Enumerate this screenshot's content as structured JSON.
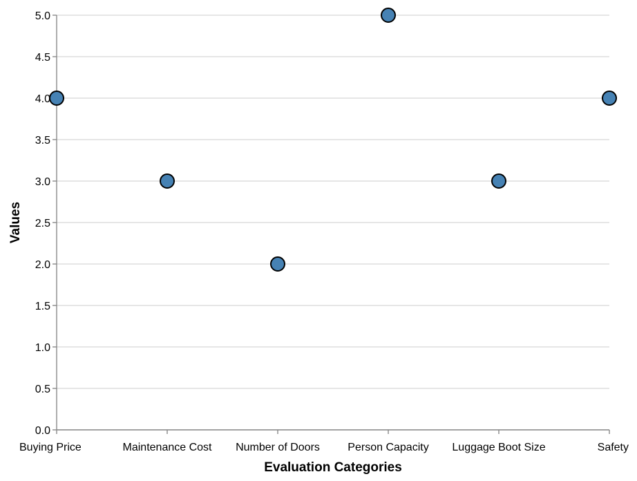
{
  "chart_data": {
    "type": "scatter",
    "categories": [
      "Buying Price",
      "Maintenance Cost",
      "Number of Doors",
      "Person Capacity",
      "Luggage Boot Size",
      "Safety"
    ],
    "values": [
      4,
      3,
      2,
      5,
      3,
      4
    ],
    "xlabel": "Evaluation Categories",
    "ylabel": "Values",
    "ylim": [
      0,
      5
    ],
    "yticks": [
      "0.0",
      "0.5",
      "1.0",
      "1.5",
      "2.0",
      "2.5",
      "3.0",
      "3.5",
      "4.0",
      "4.5",
      "5.0"
    ],
    "grid": true,
    "point_color": "#4682b4"
  }
}
